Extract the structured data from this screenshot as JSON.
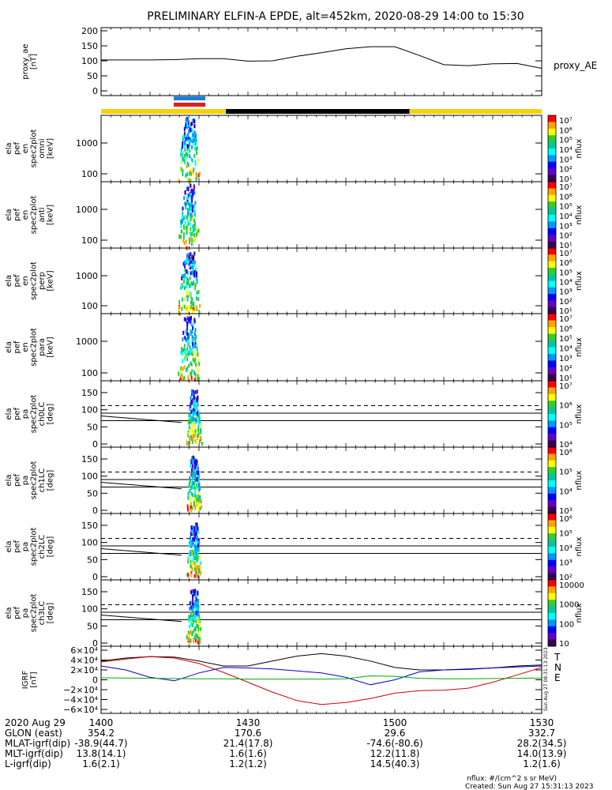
{
  "title": "PRELIMINARY ELFIN-A EPDE, alt=452km, 2020-08-29 14:00 to 15:30",
  "chart_data": [
    {
      "type": "line",
      "id": "proxy_ae",
      "ylabel": [
        "proxy_ae",
        "[nT]"
      ],
      "right_label": "proxy_AE",
      "ylim": [
        0,
        200
      ],
      "yticks": [
        "200",
        "150",
        "100",
        "50",
        "0"
      ],
      "x_minutes": [
        0,
        5,
        10,
        15,
        20,
        25,
        30,
        35,
        40,
        45,
        50,
        55,
        60,
        65,
        70,
        75,
        80,
        85,
        90
      ],
      "y": [
        103,
        103,
        103,
        104,
        107,
        107,
        99,
        100,
        115,
        127,
        140,
        147,
        147,
        118,
        87,
        84,
        90,
        91,
        75
      ]
    },
    {
      "type": "heatmap",
      "id": "spec-omni",
      "ylabel": [
        "ela",
        "pef",
        "en",
        "spec2plot",
        "omni",
        "[keV]"
      ],
      "yticks": [
        "1000",
        "100"
      ],
      "colorbar": {
        "label": "nflux",
        "ticks": [
          "10⁷",
          "10⁶",
          "10⁵",
          "10⁴",
          "10³",
          "10²",
          "10¹"
        ]
      }
    },
    {
      "type": "heatmap",
      "id": "spec-anti",
      "ylabel": [
        "ela",
        "pef",
        "en",
        "spec2plot",
        "anti",
        "[keV]"
      ],
      "yticks": [
        "1000",
        "100"
      ],
      "colorbar": {
        "label": "nflux",
        "ticks": [
          "10⁷",
          "10⁶",
          "10⁵",
          "10⁴",
          "10³",
          "10²",
          "10¹"
        ]
      }
    },
    {
      "type": "heatmap",
      "id": "spec-perp",
      "ylabel": [
        "ela",
        "pef",
        "en",
        "spec2plot",
        "perp",
        "[keV]"
      ],
      "yticks": [
        "1000",
        "100"
      ],
      "colorbar": {
        "label": "nflux",
        "ticks": [
          "10⁷",
          "10⁶",
          "10⁵",
          "10⁴",
          "10³",
          "10²",
          "10¹"
        ]
      }
    },
    {
      "type": "heatmap",
      "id": "spec-para",
      "ylabel": [
        "ela",
        "pef",
        "en",
        "spec2plot",
        "para",
        "[keV]"
      ],
      "yticks": [
        "1000",
        "100"
      ],
      "colorbar": {
        "label": "nflux",
        "ticks": [
          "10⁷",
          "10⁶",
          "10⁵",
          "10⁴",
          "10³",
          "10²",
          "10¹"
        ]
      }
    },
    {
      "type": "heatmap",
      "id": "pa-ch0",
      "ylabel": [
        "ela",
        "pef",
        "pa",
        "spec2plot",
        "ch0LC",
        "[deg]"
      ],
      "yticks": [
        "150",
        "100",
        "50",
        "0"
      ],
      "colorbar": {
        "label": "nflux",
        "ticks": [
          "10⁷",
          "10⁶",
          "10⁵",
          "10⁴"
        ]
      }
    },
    {
      "type": "heatmap",
      "id": "pa-ch1",
      "ylabel": [
        "ela",
        "pef",
        "pa",
        "spec2plot",
        "ch1LC",
        "[deg]"
      ],
      "yticks": [
        "150",
        "100",
        "50",
        "0"
      ],
      "colorbar": {
        "label": "nflux",
        "ticks": [
          "10⁶",
          "10⁵",
          "10⁴",
          "10³"
        ]
      }
    },
    {
      "type": "heatmap",
      "id": "pa-ch2",
      "ylabel": [
        "ela",
        "pef",
        "pa",
        "spec2plot",
        "ch2LC",
        "[deg]"
      ],
      "yticks": [
        "150",
        "100",
        "50",
        "0"
      ],
      "colorbar": {
        "label": "nflux",
        "ticks": [
          "10⁶",
          "10⁵",
          "10⁴",
          "10³",
          "10²"
        ]
      }
    },
    {
      "type": "heatmap",
      "id": "pa-ch3",
      "ylabel": [
        "ela",
        "pef",
        "pa",
        "spec2plot",
        "ch3LC",
        "[deg]"
      ],
      "yticks": [
        "150",
        "100",
        "50",
        "0"
      ],
      "colorbar": {
        "label": "nflux",
        "ticks": [
          "10000",
          "1000",
          "100",
          "10"
        ]
      }
    },
    {
      "type": "line",
      "id": "igrf",
      "ylabel": [
        "IGRF",
        "[nT]"
      ],
      "yticks": [
        "6×10⁴",
        "4×10⁴",
        "2×10⁴",
        "0",
        "−2×10⁴",
        "−4×10⁴",
        "−6×10⁴"
      ],
      "ylim": [
        -60000,
        60000
      ],
      "legend": [
        "T",
        "N",
        "E"
      ],
      "side_text": "Sun Aug 27 08:31:13 2023",
      "x_minutes": [
        0,
        5,
        10,
        15,
        20,
        25,
        30,
        35,
        40,
        45,
        50,
        55,
        60,
        65,
        70,
        75,
        80,
        85,
        90
      ],
      "series": [
        {
          "name": "T",
          "color": "#000000",
          "values": [
            38000,
            44000,
            47000,
            46000,
            38000,
            28000,
            28000,
            38000,
            48000,
            53000,
            48000,
            38000,
            25000,
            20000,
            20000,
            21000,
            24000,
            28000,
            30000
          ]
        },
        {
          "name": "N",
          "color": "#cc0000",
          "values": [
            36000,
            42000,
            47000,
            44000,
            33000,
            15000,
            -5000,
            -25000,
            -42000,
            -50000,
            -46000,
            -38000,
            -27000,
            -22000,
            -21000,
            -17000,
            -5000,
            10000,
            25000
          ]
        },
        {
          "name": "E",
          "color": "#0000cc",
          "values": [
            28000,
            20000,
            5000,
            -2000,
            14000,
            25000,
            24000,
            22000,
            18000,
            14000,
            5000,
            -10000,
            0,
            16000,
            20000,
            22000,
            24000,
            26000,
            28000
          ]
        },
        {
          "name": "",
          "color": "#00aa00",
          "values": [
            4000,
            3500,
            3000,
            2500,
            2000,
            2000,
            1500,
            1500,
            1500,
            1500,
            2000,
            8000,
            7000,
            3000,
            2000,
            2000,
            2500,
            3000,
            3500
          ]
        }
      ]
    }
  ],
  "ephemeris": {
    "labels": [
      "2020 Aug 29",
      "GLON (east)",
      "MLAT-igrf(dip)",
      "MLT-igrf(dip)",
      "L-igrf(dip)"
    ],
    "times": [
      "1400",
      "1430",
      "1500",
      "1530"
    ],
    "rows": [
      [
        "354.2",
        "170.6",
        "29.6",
        "332.7"
      ],
      [
        "-38.9(44.7)",
        "21.4(17.8)",
        "-74.6(-80.6)",
        "28.2(34.5)"
      ],
      [
        "13.8(14.1)",
        "1.6(1.6)",
        "12.2(11.8)",
        "14.0(13.9)"
      ],
      [
        "1.6(2.1)",
        "1.2(1.2)",
        "14.5(40.3)",
        "1.2(1.6)"
      ]
    ]
  },
  "footer": {
    "units": "nflux: #/(cm^2 s sr MeV)",
    "created": "Created: Sun Aug 27 15:31:13 2023"
  },
  "colors": {
    "orbit_day": "#f5d20a",
    "orbit_night": "#000000",
    "bar_blue": "#1e7fe0",
    "bar_red": "#e01e1e"
  }
}
